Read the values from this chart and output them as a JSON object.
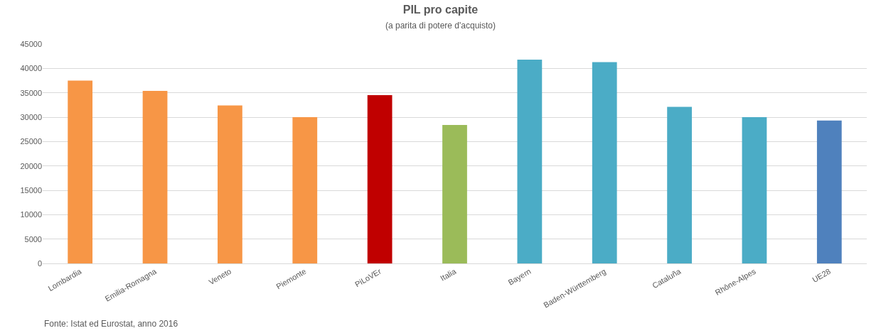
{
  "chart_data": {
    "type": "bar",
    "title": "PIL pro capite",
    "subtitle": "(a parita di potere d'acquisto)",
    "categories": [
      "Lombardia",
      "Emilia-Romagna",
      "Veneto",
      "Piemonte",
      "PiLoVEr",
      "Italia",
      "Bayern",
      "Baden-Württemberg",
      "Cataluña",
      "Rhône-Alpes",
      "UE28"
    ],
    "values": [
      37500,
      35400,
      32400,
      30000,
      34500,
      28400,
      41800,
      41300,
      32100,
      30000,
      29300
    ],
    "colors": [
      "#f79646",
      "#f79646",
      "#f79646",
      "#f79646",
      "#c00000",
      "#9bbb59",
      "#4bacc6",
      "#4bacc6",
      "#4bacc6",
      "#4bacc6",
      "#4f81bd"
    ],
    "ylim": [
      0,
      45000
    ],
    "yticks": [
      0,
      5000,
      10000,
      15000,
      20000,
      25000,
      30000,
      35000,
      40000,
      45000
    ],
    "grid": "y",
    "legend": false,
    "annotations": [
      "Fonte: Istat ed Eurostat, anno 2016"
    ]
  }
}
